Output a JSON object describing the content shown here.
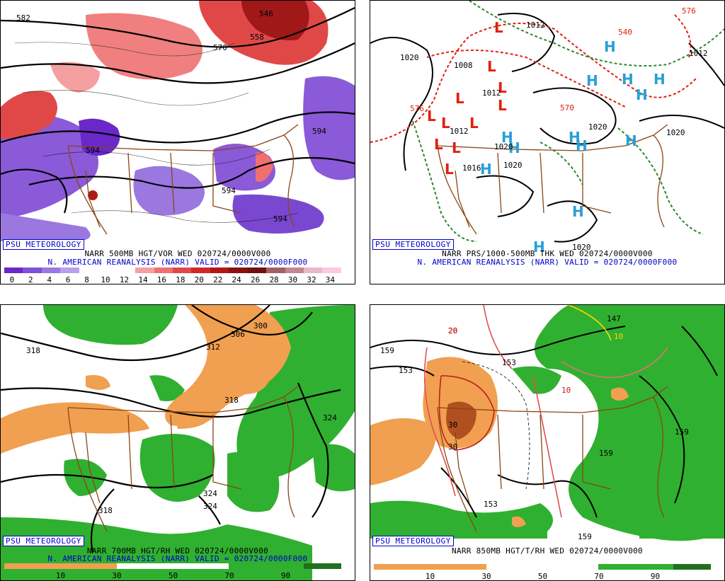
{
  "branding": "PSU METEOROLOGY",
  "panels": {
    "p1": {
      "caption1": "NARR 500MB HGT/VOR WED 020724/0000V000",
      "caption2": "N. AMERICAN REANALYSIS (NARR) VALID = 020724/0000F000",
      "contour_labels": [
        "582",
        "546",
        "558",
        "570",
        "594",
        "594",
        "594",
        "594"
      ],
      "colorbar_ticks": [
        "0",
        "2",
        "4",
        "6",
        "8",
        "10",
        "12",
        "14",
        "16",
        "18",
        "20",
        "22",
        "24",
        "26",
        "28",
        "30",
        "32",
        "34"
      ],
      "colorbar_colors": [
        "#6a28c8",
        "#8050d8",
        "#9a78e0",
        "#b8a0ec",
        "#ffffff",
        "#ffffff",
        "#ffffff",
        "#f4a0a0",
        "#ee7070",
        "#e04848",
        "#d02828",
        "#b01818",
        "#8a1010",
        "#701010",
        "#a06068",
        "#c08890",
        "#e8b8c8",
        "#ffc8e0"
      ]
    },
    "p2": {
      "caption1": "NARR PRS/1000-500MB THK WED 020724/0000V000",
      "caption2": "N. AMERICAN REANALYSIS (NARR) VALID = 020724/0000F000",
      "contour_labels": [
        "1012",
        "1020",
        "1008",
        "1012",
        "1020",
        "1020",
        "1020",
        "1016",
        "1012",
        "1020",
        "1020",
        "1012",
        "540",
        "570",
        "576",
        "576"
      ]
    },
    "p3": {
      "caption1": "NARR 700MB HGT/RH WED 020724/0000V000",
      "caption2": "N. AMERICAN REANALYSIS (NARR) VALID = 020724/0000F000",
      "contour_labels": [
        "318",
        "300",
        "306",
        "312",
        "318",
        "324",
        "324",
        "324",
        "318"
      ],
      "colorbar_ticks": [
        "10",
        "30",
        "50",
        "70",
        "90"
      ]
    },
    "p4": {
      "caption1": "NARR 850MB HGT/T/RH WED 020724/0000V000",
      "contour_labels": [
        "159",
        "153",
        "153",
        "147",
        "159",
        "159",
        "153",
        "159",
        "20",
        "10",
        "30",
        "30",
        "10"
      ],
      "colorbar_ticks": [
        "10",
        "30",
        "50",
        "70",
        "90"
      ]
    }
  },
  "colors": {
    "high": "#2a9fd6",
    "low": "#e02010",
    "rh_dry": "#f0a050",
    "rh_moist": "#30b030",
    "caption_blue": "#0000cc",
    "borders": "#8b4513"
  }
}
